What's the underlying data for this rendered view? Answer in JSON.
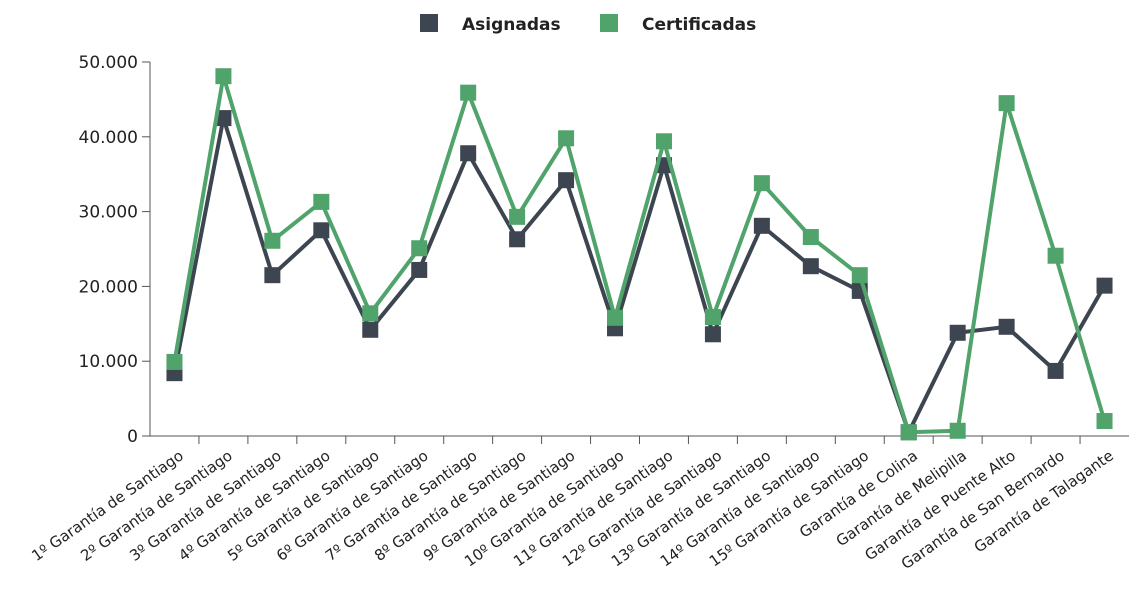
{
  "chart_data": {
    "type": "line",
    "categories": [
      "1º Garantía de Santiago",
      "2º Garantía de Santiago",
      "3º Garantía de Santiago",
      "4º Garantía de Santiago",
      "5º Garantía de Santiago",
      "6º Garantía de Santiago",
      "7º Garantía de Santiago",
      "8º Garantía de Santiago",
      "9º Garantía de Santiago",
      "10º Garantía de Santiago",
      "11º Garantía de Santiago",
      "12º Garantía de Santiago",
      "13º Garantía de Santiago",
      "14º Garantía de Santiago",
      "15º Garantía de Santiago",
      "Garantía de Colina",
      "Garantía de Melipilla",
      "Garantía de Puente Alto",
      "Garantía de San Bernardo",
      "Garantía de Talagante"
    ],
    "series": [
      {
        "name": "Asignadas",
        "color": "#3d4550",
        "values": [
          8400,
          42500,
          21500,
          27500,
          14200,
          22200,
          37800,
          26300,
          34200,
          14400,
          36200,
          13600,
          28100,
          22700,
          19400,
          500,
          13800,
          14600,
          8700,
          20100
        ]
      },
      {
        "name": "Certificadas",
        "color": "#4fa36b",
        "values": [
          9900,
          48100,
          26100,
          31300,
          16400,
          25100,
          45900,
          29300,
          39800,
          15800,
          39400,
          15900,
          33800,
          26600,
          21500,
          500,
          700,
          44500,
          24100,
          2000
        ]
      }
    ],
    "ylim": [
      0,
      50000
    ],
    "yticks": [
      0,
      {
        "value": 10000,
        "label": "10.000"
      },
      {
        "value": 20000,
        "label": "20.000"
      },
      {
        "value": 30000,
        "label": "30.000"
      },
      {
        "value": 40000,
        "label": "40.000"
      },
      {
        "value": 50000,
        "label": "50.000"
      }
    ],
    "legend": "top"
  }
}
